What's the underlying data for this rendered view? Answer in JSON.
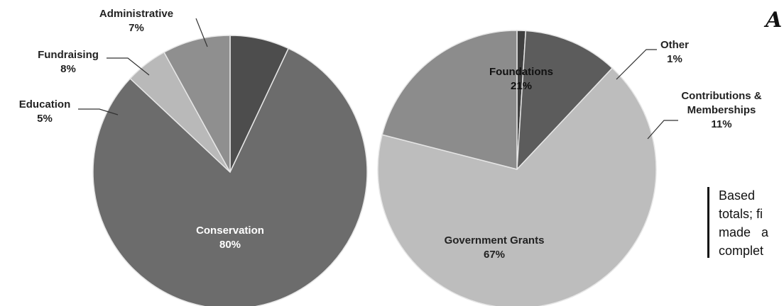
{
  "chart_data": [
    {
      "type": "pie",
      "slices": [
        {
          "label": "Administrative",
          "value": 7,
          "pct": "7%"
        },
        {
          "label": "Conservation",
          "value": 80,
          "pct": "80%"
        },
        {
          "label": "Education",
          "value": 5,
          "pct": "5%"
        },
        {
          "label": "Fundraising",
          "value": 8,
          "pct": "8%"
        }
      ]
    },
    {
      "type": "pie",
      "slices": [
        {
          "label": "Other",
          "value": 1,
          "pct": "1%"
        },
        {
          "label": "Contributions & Memberships",
          "value": 11,
          "pct": "11%"
        },
        {
          "label": "Government Grants",
          "value": 67,
          "pct": "67%"
        },
        {
          "label": "Foundations",
          "value": 21,
          "pct": "21%"
        }
      ]
    }
  ],
  "annotation": {
    "lines": [
      "Based",
      "totals; fi",
      "made   a",
      "complet"
    ]
  },
  "corner_glyph": "A",
  "colors": {
    "Conservation": "#6c6c6c",
    "Administrative": "#4d4d4d",
    "Fundraising": "#8f8f8f",
    "Education": "#b9b9b9",
    "Government Grants": "#bdbdbd",
    "Foundations": "#8c8c8c",
    "Other": "#3f3f3f",
    "Contributions & Memberships": "#5c5c5c"
  }
}
